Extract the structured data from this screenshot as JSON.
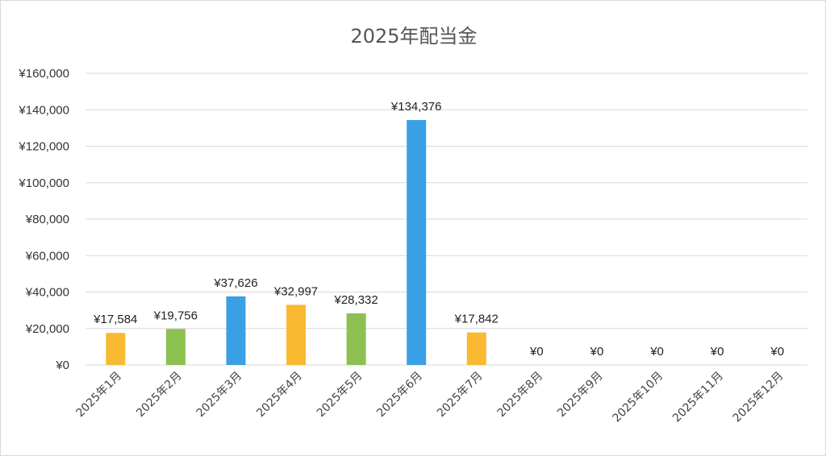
{
  "chart_data": {
    "type": "bar",
    "title": "2025年配当金",
    "categories": [
      "2025年1月",
      "2025年2月",
      "2025年3月",
      "2025年4月",
      "2025年5月",
      "2025年6月",
      "2025年7月",
      "2025年8月",
      "2025年9月",
      "2025年10月",
      "2025年11月",
      "2025年12月"
    ],
    "values": [
      17584,
      19756,
      37626,
      32997,
      28332,
      134376,
      17842,
      0,
      0,
      0,
      0,
      0
    ],
    "data_labels": [
      "¥17,584",
      "¥19,756",
      "¥37,626",
      "¥32,997",
      "¥28,332",
      "¥134,376",
      "¥17,842",
      "¥0",
      "¥0",
      "¥0",
      "¥0",
      "¥0"
    ],
    "bar_colors": [
      "#F9B931",
      "#8CC152",
      "#3AA0E6",
      "#F9B931",
      "#8CC152",
      "#3AA0E6",
      "#F9B931",
      "#F9B931",
      "#8CC152",
      "#3AA0E6",
      "#F9B931",
      "#8CC152"
    ],
    "ylim": [
      0,
      160000
    ],
    "yticks": [
      0,
      20000,
      40000,
      60000,
      80000,
      100000,
      120000,
      140000,
      160000
    ],
    "ytick_labels": [
      "¥0",
      "¥20,000",
      "¥40,000",
      "¥60,000",
      "¥80,000",
      "¥100,000",
      "¥120,000",
      "¥140,000",
      "¥160,000"
    ],
    "grid": true,
    "legend": "none",
    "xlabel": "",
    "ylabel": ""
  }
}
